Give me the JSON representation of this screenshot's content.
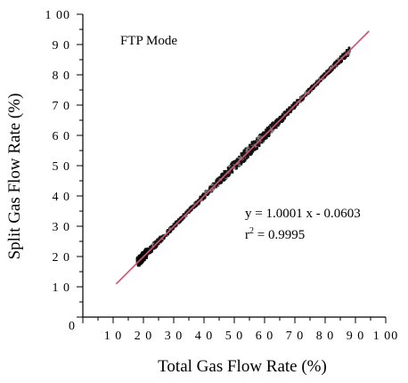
{
  "chart_data": {
    "type": "scatter",
    "xlabel": "Total Gas Flow Rate (%)",
    "ylabel": "Split Gas Flow Rate (%)",
    "xlim": [
      0,
      100
    ],
    "ylim": [
      0,
      100
    ],
    "x_tick_labels": [
      "0",
      "1 0",
      "2 0",
      "3 0",
      "4 0",
      "5 0",
      "6 0",
      "7 0",
      "8 0",
      "9 0",
      "1 00"
    ],
    "y_tick_labels": [
      "1 0",
      "2 0",
      "3 0",
      "4 0",
      "5 0",
      "6 0",
      "7 0",
      "8 0",
      "9 0",
      "1 00"
    ],
    "x_tick_values": [
      0,
      10,
      20,
      30,
      40,
      50,
      60,
      70,
      80,
      90,
      100
    ],
    "y_tick_values": [
      10,
      20,
      30,
      40,
      50,
      60,
      70,
      80,
      90,
      100
    ],
    "grid": false,
    "annotations": {
      "mode": "FTP Mode",
      "equation": "y = 1.0001 x - 0.0603",
      "r2_prefix": "r",
      "r2_sup": "2",
      "r2_value": " = 0.9995"
    },
    "series": [
      {
        "kind": "points",
        "color": "#111111",
        "x_range": [
          18,
          88
        ],
        "points": [
          [
            18,
            18.2
          ],
          [
            19,
            19.1
          ],
          [
            20,
            20.3
          ],
          [
            22,
            22.0
          ],
          [
            25,
            25.2
          ],
          [
            28,
            27.9
          ],
          [
            30,
            30.1
          ],
          [
            33,
            33.0
          ],
          [
            35,
            35.1
          ],
          [
            38,
            37.8
          ],
          [
            40,
            40.2
          ],
          [
            43,
            43.0
          ],
          [
            45,
            44.9
          ],
          [
            48,
            48.1
          ],
          [
            50,
            50.0
          ],
          [
            53,
            52.8
          ],
          [
            55,
            55.1
          ],
          [
            58,
            58.0
          ],
          [
            60,
            60.1
          ],
          [
            63,
            62.9
          ],
          [
            65,
            65.0
          ],
          [
            68,
            68.1
          ],
          [
            70,
            70.0
          ],
          [
            73,
            72.9
          ],
          [
            75,
            75.1
          ],
          [
            78,
            78.0
          ],
          [
            80,
            80.0
          ],
          [
            83,
            82.9
          ],
          [
            85,
            85.1
          ],
          [
            88,
            88.0
          ]
        ]
      },
      {
        "kind": "fit",
        "color": "#d9506e",
        "slope": 1.0001,
        "intercept": -0.0603,
        "x_range": [
          11,
          94.5
        ]
      }
    ]
  }
}
